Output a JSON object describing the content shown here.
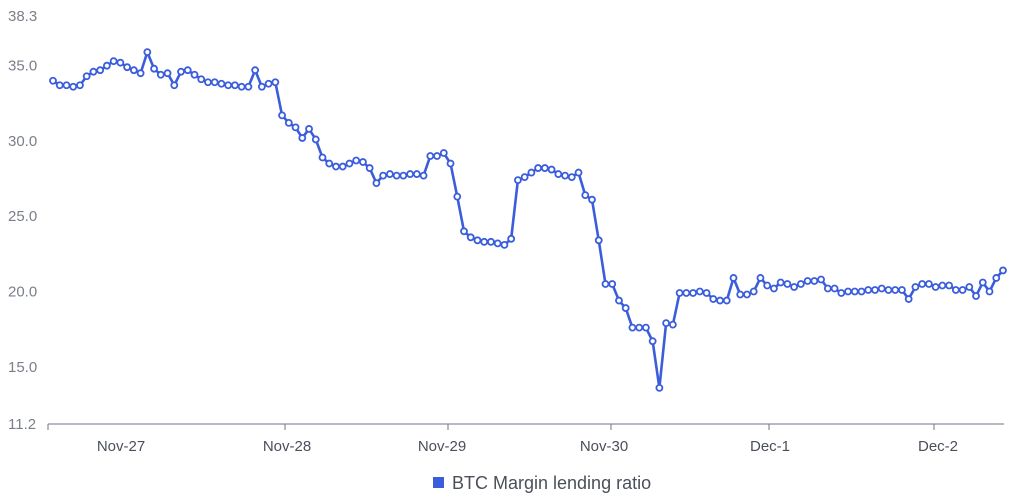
{
  "chart_data": {
    "type": "line",
    "title": "",
    "xlabel": "",
    "ylabel": "",
    "ylim": [
      11.2,
      38.3
    ],
    "y_ticks": [
      "38.3",
      "35.0",
      "30.0",
      "25.0",
      "20.0",
      "15.0",
      "11.2"
    ],
    "x_ticks": [
      "Nov-27",
      "Nov-28",
      "Nov-29",
      "Nov-30",
      "Dec-1",
      "Dec-2"
    ],
    "grid": false,
    "legend_position": "bottom",
    "series": [
      {
        "name": "BTC Margin lending ratio",
        "color": "#3a5ddc",
        "values": [
          34.0,
          33.7,
          33.7,
          33.6,
          33.7,
          34.3,
          34.6,
          34.7,
          35.0,
          35.3,
          35.2,
          34.9,
          34.7,
          34.5,
          35.9,
          34.8,
          34.4,
          34.5,
          33.7,
          34.6,
          34.7,
          34.4,
          34.1,
          33.9,
          33.9,
          33.8,
          33.7,
          33.7,
          33.6,
          33.6,
          34.7,
          33.6,
          33.8,
          33.9,
          31.7,
          31.2,
          30.9,
          30.2,
          30.8,
          30.1,
          28.9,
          28.5,
          28.3,
          28.3,
          28.5,
          28.7,
          28.6,
          28.2,
          27.2,
          27.7,
          27.8,
          27.7,
          27.7,
          27.8,
          27.8,
          27.7,
          29.0,
          29.0,
          29.2,
          28.5,
          26.3,
          24.0,
          23.6,
          23.4,
          23.3,
          23.3,
          23.2,
          23.1,
          23.5,
          27.4,
          27.6,
          27.9,
          28.2,
          28.2,
          28.1,
          27.8,
          27.7,
          27.6,
          27.9,
          26.4,
          26.1,
          23.4,
          20.5,
          20.5,
          19.4,
          18.9,
          17.6,
          17.6,
          17.6,
          16.7,
          13.6,
          17.9,
          17.8,
          19.9,
          19.9,
          19.9,
          20.0,
          19.9,
          19.5,
          19.4,
          19.4,
          20.9,
          19.8,
          19.8,
          20.0,
          20.9,
          20.4,
          20.2,
          20.6,
          20.5,
          20.3,
          20.5,
          20.7,
          20.7,
          20.8,
          20.2,
          20.2,
          19.9,
          20.0,
          20.0,
          20.0,
          20.1,
          20.1,
          20.2,
          20.1,
          20.1,
          20.1,
          19.5,
          20.3,
          20.5,
          20.5,
          20.3,
          20.4,
          20.4,
          20.1,
          20.1,
          20.3,
          19.7,
          20.6,
          20.0,
          20.9,
          21.4
        ]
      }
    ]
  }
}
